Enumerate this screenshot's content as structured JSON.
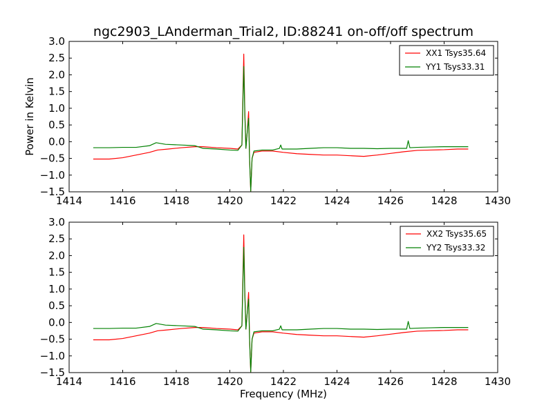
{
  "chart_data": [
    {
      "type": "line",
      "title": "ngc2903_LAnderman_Trial2, ID:88241 on-off/off spectrum",
      "xlabel": "",
      "ylabel": "Power in Kelvin",
      "xlim": [
        1414,
        1430
      ],
      "ylim": [
        -1.5,
        3.0
      ],
      "xticks": [
        "1414",
        "1416",
        "1418",
        "1420",
        "1422",
        "1424",
        "1426",
        "1428",
        "1430"
      ],
      "yticks": [
        "−1.5",
        "−1.0",
        "−0.5",
        "0.0",
        "0.5",
        "1.0",
        "1.5",
        "2.0",
        "2.5",
        "3.0"
      ],
      "legend_position": "top-right",
      "series": [
        {
          "name": "XX1 Tsys35.64",
          "color": "#ff0000",
          "points": [
            [
              1414.9,
              -0.52
            ],
            [
              1415.5,
              -0.52
            ],
            [
              1416.0,
              -0.48
            ],
            [
              1416.5,
              -0.4
            ],
            [
              1417.0,
              -0.32
            ],
            [
              1417.3,
              -0.25
            ],
            [
              1417.7,
              -0.22
            ],
            [
              1418.2,
              -0.18
            ],
            [
              1418.7,
              -0.15
            ],
            [
              1419.0,
              -0.15
            ],
            [
              1419.5,
              -0.18
            ],
            [
              1420.0,
              -0.2
            ],
            [
              1420.3,
              -0.22
            ],
            [
              1420.45,
              -0.1
            ],
            [
              1420.52,
              2.62
            ],
            [
              1420.56,
              0.9
            ],
            [
              1420.6,
              -0.2
            ],
            [
              1420.65,
              0.3
            ],
            [
              1420.7,
              0.9
            ],
            [
              1420.74,
              -0.6
            ],
            [
              1420.78,
              -1.48
            ],
            [
              1420.83,
              -0.5
            ],
            [
              1420.9,
              -0.32
            ],
            [
              1421.2,
              -0.28
            ],
            [
              1421.6,
              -0.28
            ],
            [
              1422.0,
              -0.32
            ],
            [
              1422.5,
              -0.36
            ],
            [
              1423.0,
              -0.38
            ],
            [
              1423.5,
              -0.4
            ],
            [
              1424.0,
              -0.4
            ],
            [
              1424.5,
              -0.42
            ],
            [
              1425.0,
              -0.44
            ],
            [
              1425.5,
              -0.4
            ],
            [
              1426.0,
              -0.35
            ],
            [
              1426.5,
              -0.3
            ],
            [
              1427.0,
              -0.26
            ],
            [
              1427.5,
              -0.25
            ],
            [
              1428.0,
              -0.24
            ],
            [
              1428.5,
              -0.22
            ],
            [
              1428.9,
              -0.22
            ]
          ]
        },
        {
          "name": "YY1 Tsys33.31",
          "color": "#008000",
          "points": [
            [
              1414.9,
              -0.18
            ],
            [
              1415.5,
              -0.18
            ],
            [
              1416.0,
              -0.17
            ],
            [
              1416.5,
              -0.17
            ],
            [
              1417.0,
              -0.12
            ],
            [
              1417.25,
              -0.03
            ],
            [
              1417.6,
              -0.08
            ],
            [
              1418.2,
              -0.1
            ],
            [
              1418.7,
              -0.12
            ],
            [
              1419.0,
              -0.2
            ],
            [
              1419.5,
              -0.22
            ],
            [
              1420.0,
              -0.25
            ],
            [
              1420.3,
              -0.26
            ],
            [
              1420.45,
              -0.1
            ],
            [
              1420.52,
              2.25
            ],
            [
              1420.56,
              0.8
            ],
            [
              1420.6,
              -0.2
            ],
            [
              1420.65,
              0.3
            ],
            [
              1420.7,
              0.7
            ],
            [
              1420.74,
              -0.6
            ],
            [
              1420.78,
              -1.48
            ],
            [
              1420.83,
              -0.5
            ],
            [
              1420.9,
              -0.28
            ],
            [
              1421.2,
              -0.25
            ],
            [
              1421.6,
              -0.25
            ],
            [
              1421.85,
              -0.2
            ],
            [
              1421.9,
              -0.1
            ],
            [
              1421.95,
              -0.22
            ],
            [
              1422.5,
              -0.22
            ],
            [
              1423.0,
              -0.2
            ],
            [
              1423.5,
              -0.18
            ],
            [
              1424.0,
              -0.18
            ],
            [
              1424.5,
              -0.2
            ],
            [
              1425.0,
              -0.2
            ],
            [
              1425.5,
              -0.21
            ],
            [
              1426.0,
              -0.2
            ],
            [
              1426.6,
              -0.2
            ],
            [
              1426.66,
              0.03
            ],
            [
              1426.72,
              -0.18
            ],
            [
              1427.0,
              -0.17
            ],
            [
              1427.5,
              -0.16
            ],
            [
              1428.0,
              -0.15
            ],
            [
              1428.5,
              -0.15
            ],
            [
              1428.9,
              -0.15
            ]
          ]
        }
      ]
    },
    {
      "type": "line",
      "title": "",
      "xlabel": "Frequency (MHz)",
      "ylabel": "",
      "xlim": [
        1414,
        1430
      ],
      "ylim": [
        -1.5,
        3.0
      ],
      "xticks": [
        "1414",
        "1416",
        "1418",
        "1420",
        "1422",
        "1424",
        "1426",
        "1428",
        "1430"
      ],
      "yticks": [
        "−1.5",
        "−1.0",
        "−0.5",
        "0.0",
        "0.5",
        "1.0",
        "1.5",
        "2.0",
        "2.5",
        "3.0"
      ],
      "legend_position": "top-right",
      "series": [
        {
          "name": "XX2 Tsys35.65",
          "color": "#ff0000",
          "points": [
            [
              1414.9,
              -0.52
            ],
            [
              1415.5,
              -0.52
            ],
            [
              1416.0,
              -0.48
            ],
            [
              1416.5,
              -0.4
            ],
            [
              1417.0,
              -0.32
            ],
            [
              1417.3,
              -0.25
            ],
            [
              1417.7,
              -0.22
            ],
            [
              1418.2,
              -0.18
            ],
            [
              1418.7,
              -0.15
            ],
            [
              1419.0,
              -0.15
            ],
            [
              1419.5,
              -0.18
            ],
            [
              1420.0,
              -0.2
            ],
            [
              1420.3,
              -0.22
            ],
            [
              1420.45,
              -0.1
            ],
            [
              1420.52,
              2.62
            ],
            [
              1420.56,
              0.9
            ],
            [
              1420.6,
              -0.2
            ],
            [
              1420.65,
              0.3
            ],
            [
              1420.7,
              0.9
            ],
            [
              1420.74,
              -0.6
            ],
            [
              1420.78,
              -1.48
            ],
            [
              1420.83,
              -0.5
            ],
            [
              1420.9,
              -0.32
            ],
            [
              1421.2,
              -0.28
            ],
            [
              1421.6,
              -0.28
            ],
            [
              1422.0,
              -0.32
            ],
            [
              1422.5,
              -0.36
            ],
            [
              1423.0,
              -0.38
            ],
            [
              1423.5,
              -0.4
            ],
            [
              1424.0,
              -0.4
            ],
            [
              1424.5,
              -0.42
            ],
            [
              1425.0,
              -0.44
            ],
            [
              1425.5,
              -0.4
            ],
            [
              1426.0,
              -0.35
            ],
            [
              1426.5,
              -0.3
            ],
            [
              1427.0,
              -0.26
            ],
            [
              1427.5,
              -0.25
            ],
            [
              1428.0,
              -0.24
            ],
            [
              1428.5,
              -0.22
            ],
            [
              1428.9,
              -0.22
            ]
          ]
        },
        {
          "name": "YY2 Tsys33.32",
          "color": "#008000",
          "points": [
            [
              1414.9,
              -0.18
            ],
            [
              1415.5,
              -0.18
            ],
            [
              1416.0,
              -0.17
            ],
            [
              1416.5,
              -0.17
            ],
            [
              1417.0,
              -0.12
            ],
            [
              1417.25,
              -0.03
            ],
            [
              1417.6,
              -0.08
            ],
            [
              1418.2,
              -0.1
            ],
            [
              1418.7,
              -0.12
            ],
            [
              1419.0,
              -0.2
            ],
            [
              1419.5,
              -0.22
            ],
            [
              1420.0,
              -0.25
            ],
            [
              1420.3,
              -0.26
            ],
            [
              1420.45,
              -0.1
            ],
            [
              1420.52,
              2.25
            ],
            [
              1420.56,
              0.8
            ],
            [
              1420.6,
              -0.2
            ],
            [
              1420.65,
              0.3
            ],
            [
              1420.7,
              0.7
            ],
            [
              1420.74,
              -0.6
            ],
            [
              1420.78,
              -1.48
            ],
            [
              1420.83,
              -0.5
            ],
            [
              1420.9,
              -0.28
            ],
            [
              1421.2,
              -0.25
            ],
            [
              1421.6,
              -0.25
            ],
            [
              1421.85,
              -0.2
            ],
            [
              1421.9,
              -0.1
            ],
            [
              1421.95,
              -0.22
            ],
            [
              1422.5,
              -0.22
            ],
            [
              1423.0,
              -0.2
            ],
            [
              1423.5,
              -0.18
            ],
            [
              1424.0,
              -0.18
            ],
            [
              1424.5,
              -0.2
            ],
            [
              1425.0,
              -0.2
            ],
            [
              1425.5,
              -0.21
            ],
            [
              1426.0,
              -0.2
            ],
            [
              1426.6,
              -0.2
            ],
            [
              1426.66,
              0.03
            ],
            [
              1426.72,
              -0.18
            ],
            [
              1427.0,
              -0.17
            ],
            [
              1427.5,
              -0.16
            ],
            [
              1428.0,
              -0.15
            ],
            [
              1428.5,
              -0.15
            ],
            [
              1428.9,
              -0.15
            ]
          ]
        }
      ]
    }
  ]
}
